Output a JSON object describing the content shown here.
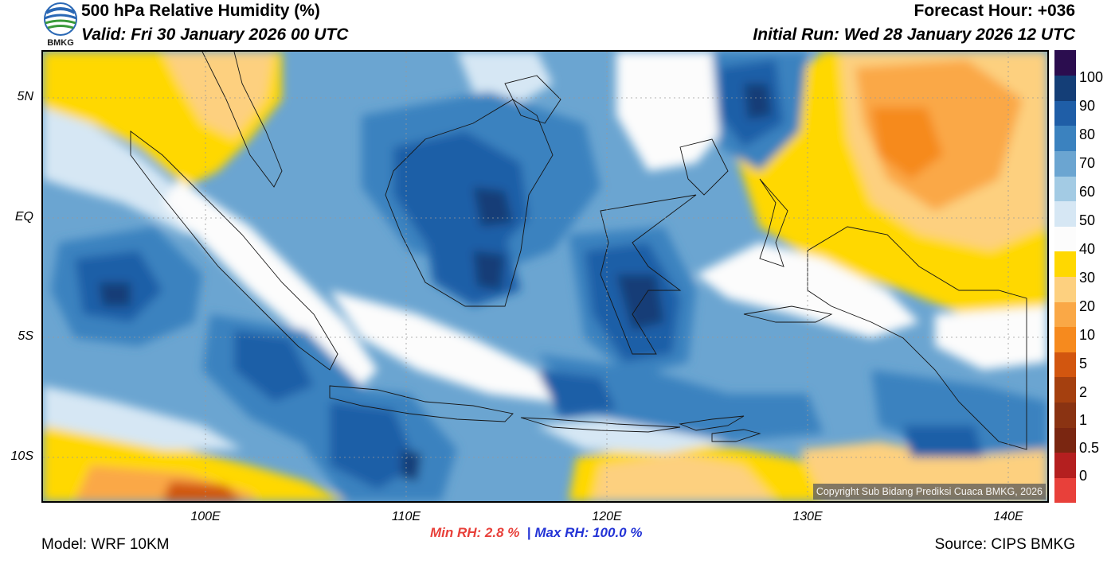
{
  "header": {
    "title": "500 hPa Relative Humidity (%)",
    "valid": "Valid: Fri 30 January 2026 00 UTC",
    "forecast_hour": "Forecast Hour: +036",
    "initial_run": "Initial Run: Wed 28 January 2026 12 UTC",
    "logo_text": "BMKG"
  },
  "map": {
    "lat_labels": [
      "5N",
      "EQ",
      "5S",
      "10S"
    ],
    "lon_labels": [
      "100E",
      "110E",
      "120E",
      "130E",
      "140E"
    ],
    "copyright": "Copyright Sub Bidang Prediksi Cuaca BMKG, 2026"
  },
  "colorbar": {
    "labels": [
      "100",
      "90",
      "80",
      "70",
      "60",
      "50",
      "40",
      "30",
      "20",
      "10",
      "5",
      "2",
      "1",
      "0.5",
      "0"
    ],
    "colors": [
      "#e8403a",
      "#b41f1f",
      "#7a2611",
      "#8a3312",
      "#a5400f",
      "#d2560f",
      "#f68a1e",
      "#faa846",
      "#fdd07f",
      "#ffd800",
      "#fcfcfc",
      "#d6e7f4",
      "#a3cbe4",
      "#6ba5d1",
      "#3b82bf",
      "#1f5ea7",
      "#143e77",
      "#2b0d4f"
    ]
  },
  "footer": {
    "min_rh": "Min RH:   2.8 %",
    "separator": "|",
    "max_rh": "Max RH: 100.0 %",
    "model": "Model: WRF 10KM",
    "source": "Source: CIPS BMKG"
  }
}
